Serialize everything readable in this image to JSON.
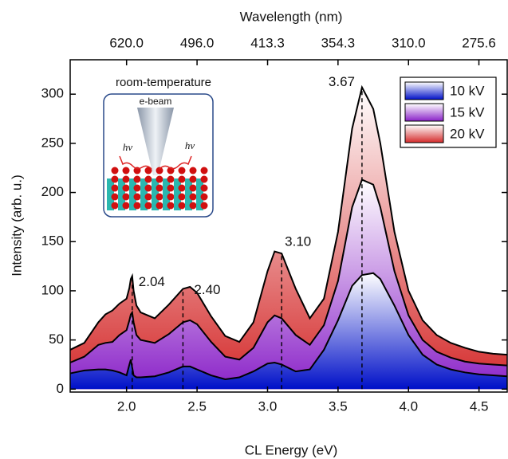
{
  "chart_data": {
    "type": "area",
    "x_label": "CL Energy (eV)",
    "y_label": "Intensity (arb. u.)",
    "x2_label": "Wavelength (nm)",
    "inset_title": "room-temperature",
    "inset_beam_label": "e-beam",
    "inset_photon_labels": [
      "hν",
      "hν"
    ],
    "x": [
      1.6,
      1.7,
      1.8,
      1.85,
      1.9,
      1.95,
      2.0,
      2.02,
      2.03,
      2.04,
      2.05,
      2.07,
      2.1,
      2.2,
      2.3,
      2.4,
      2.45,
      2.5,
      2.6,
      2.7,
      2.8,
      2.9,
      3.0,
      3.05,
      3.1,
      3.2,
      3.3,
      3.4,
      3.5,
      3.6,
      3.67,
      3.75,
      3.8,
      3.9,
      4.0,
      4.1,
      4.2,
      4.3,
      4.4,
      4.5,
      4.6,
      4.7
    ],
    "series": [
      {
        "name": "10 kV",
        "color": "#0010c8",
        "values": [
          16,
          19,
          20,
          20,
          19,
          17,
          14,
          25,
          30,
          22,
          14,
          12,
          12,
          13,
          17,
          23,
          23,
          20,
          14,
          10,
          12,
          18,
          26,
          27,
          25,
          18,
          20,
          40,
          70,
          105,
          116,
          118,
          112,
          85,
          55,
          35,
          25,
          20,
          17,
          15,
          14,
          13
        ]
      },
      {
        "name": "15 kV",
        "color": "#8a22c8",
        "values": [
          27,
          33,
          45,
          47,
          48,
          55,
          60,
          70,
          76,
          78,
          68,
          55,
          50,
          47,
          56,
          68,
          70,
          66,
          48,
          33,
          30,
          42,
          68,
          75,
          72,
          55,
          45,
          65,
          110,
          185,
          213,
          208,
          185,
          120,
          75,
          50,
          38,
          32,
          28,
          26,
          25,
          24
        ]
      },
      {
        "name": "20 kV",
        "color": "#d42a2a",
        "values": [
          40,
          47,
          68,
          76,
          80,
          87,
          92,
          103,
          112,
          115,
          100,
          85,
          78,
          72,
          86,
          102,
          104,
          98,
          74,
          54,
          48,
          68,
          120,
          140,
          138,
          102,
          72,
          92,
          160,
          265,
          307,
          285,
          250,
          160,
          100,
          70,
          55,
          47,
          42,
          38,
          36,
          35
        ]
      }
    ],
    "annotations": [
      {
        "label": "2.04",
        "x": 2.04
      },
      {
        "label": "2.40",
        "x": 2.4
      },
      {
        "label": "3.10",
        "x": 3.1
      },
      {
        "label": "3.67",
        "x": 3.67
      }
    ],
    "xlim": [
      1.6,
      4.7
    ],
    "ylim": [
      -3,
      335
    ],
    "xticks": [
      {
        "value": 2,
        "label": "2.0"
      },
      2.5,
      {
        "value": 3,
        "label": "3.0"
      },
      3.5,
      {
        "value": 4,
        "label": "4.0"
      },
      4.5
    ],
    "yticks": [
      0,
      50,
      100,
      150,
      200,
      250,
      300
    ],
    "x2ticks": [
      {
        "value": 620,
        "label": "620.0"
      },
      {
        "value": 496,
        "label": "496.0"
      },
      413.3,
      354.3,
      {
        "value": 310,
        "label": "310.0"
      },
      275.6
    ],
    "legend": "upper right"
  }
}
